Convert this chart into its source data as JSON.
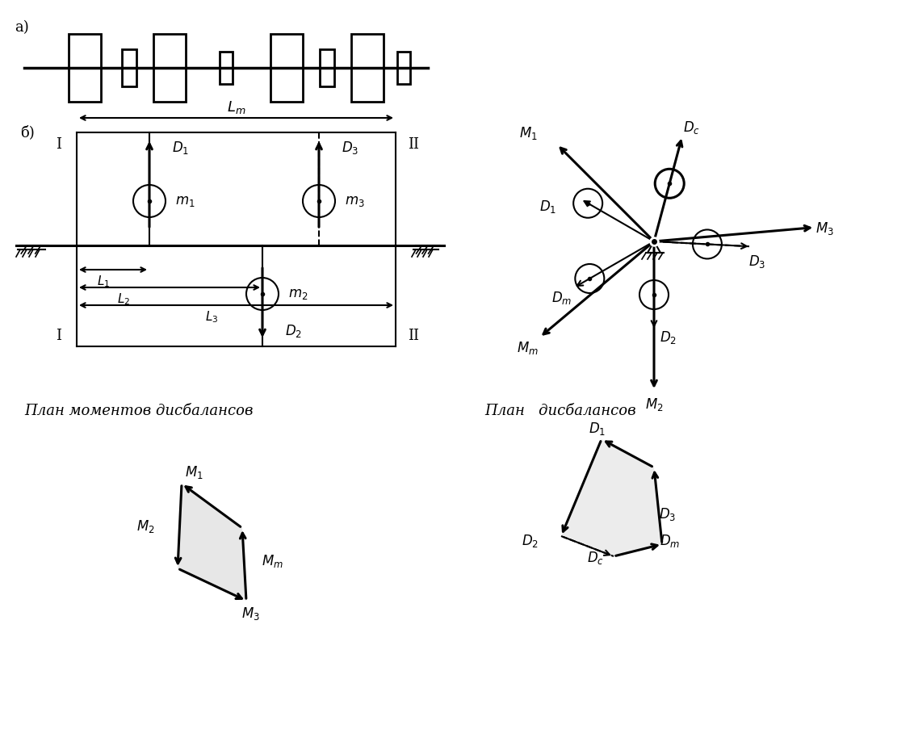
{
  "bg_color": "#ffffff",
  "lw": 1.5,
  "lw_thick": 2.2,
  "fs_label": 12,
  "fs_title": 13,
  "fs_section": 13,
  "section_a": "а)",
  "section_b": "б)",
  "label_Lm": "$L_m$",
  "label_I": "I",
  "label_II": "II",
  "label_L1": "$L_1$",
  "label_L2": "$L_2$",
  "label_L3": "$L_3$",
  "label_D1": "$D_1$",
  "label_D2": "$D_2$",
  "label_D3": "$D_3$",
  "label_m1": "$m_1$",
  "label_m2": "$m_2$",
  "label_m3": "$m_3$",
  "label_M1": "$M_1$",
  "label_M2": "$M_2$",
  "label_M3": "$M_3$",
  "label_Mm": "$M_m$",
  "label_Dc": "$D_c$",
  "label_Dm": "$D_m$",
  "title_moments": "План моментов дисбалансов",
  "title_disbal": "План   дисбалансов"
}
